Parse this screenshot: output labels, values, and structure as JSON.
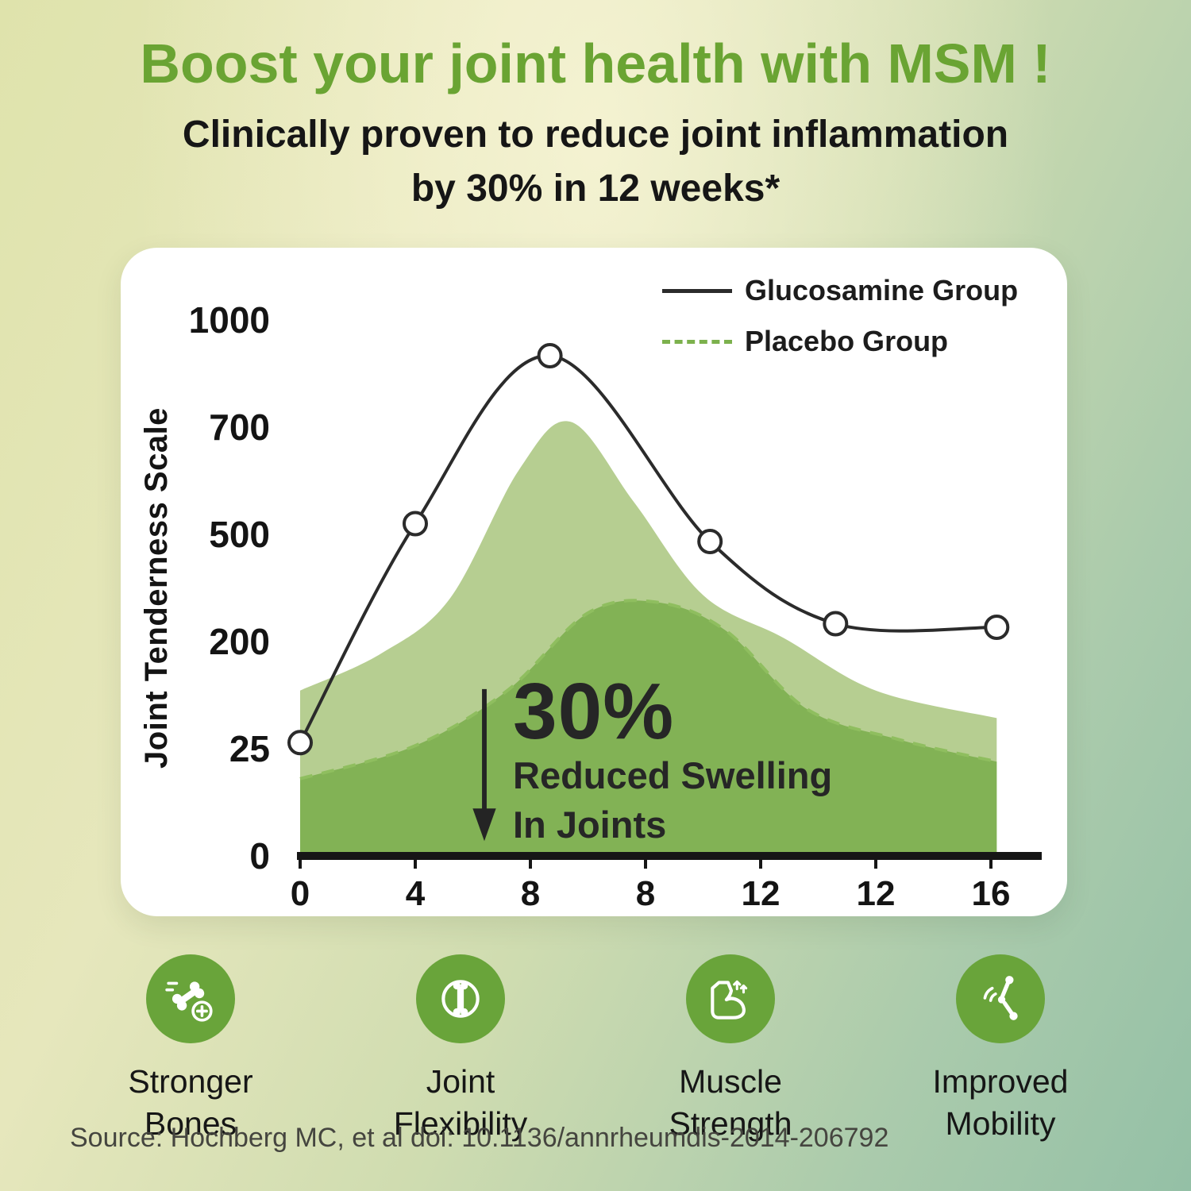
{
  "header": {
    "title": "Boost your joint health with MSM !",
    "subtitle": "Clinically proven to reduce joint inflammation\nby 30% in 12 weeks*"
  },
  "legend": {
    "items": [
      {
        "label": "Glucosamine Group",
        "style": "solid",
        "color": "#2b2b2b"
      },
      {
        "label": "Placebo Group",
        "style": "dashed",
        "color": "#7cb14d"
      }
    ]
  },
  "annotation": {
    "headline": "30%",
    "line1": "Reduced Swelling",
    "line2": "In Joints"
  },
  "features": [
    {
      "icon": "stronger-bones-icon",
      "label": "Stronger\nBones"
    },
    {
      "icon": "joint-flexibility-icon",
      "label": "Joint\nFlexibility"
    },
    {
      "icon": "muscle-strength-icon",
      "label": "Muscle\nStrength"
    },
    {
      "icon": "improved-mobility-icon",
      "label": "Improved\nMobility"
    }
  ],
  "source": "Source: Hochberg MC, et al doi: 10.1136/annrheumdis-2014-206792",
  "colors": {
    "title_green": "#6aa433",
    "badge_green": "#69a43a",
    "area_light": "#b6ce91",
    "area_dark": "#82b255",
    "dashed_green": "#8fbe5f",
    "line_dark": "#2b2b2b"
  },
  "chart_data": {
    "type": "area",
    "title": "",
    "ylabel": "Joint Tenderness Scale",
    "xlabel": "",
    "grid": false,
    "legend_position": "top-right",
    "y_ticks": [
      0,
      25,
      200,
      500,
      700,
      1000
    ],
    "y_tick_labels": [
      "0",
      "25",
      "200",
      "500",
      "700",
      "1000"
    ],
    "x_tick_labels": [
      "0",
      "4",
      "8",
      "8",
      "12",
      "12",
      "16"
    ],
    "series": [
      {
        "name": "Light green area",
        "kind": "area",
        "fill": "#b6ce91",
        "x_pos": [
          0,
          0.7,
          1.3,
          1.9,
          2.35,
          2.9,
          3.5,
          4.2,
          5.0,
          6.05
        ],
        "values": [
          120,
          180,
          320,
          620,
          715,
          560,
          330,
          210,
          120,
          75
        ]
      },
      {
        "name": "Placebo Group",
        "kind": "area-dashed",
        "fill": "#82b255",
        "stroke": "#8fbe5f",
        "x_pos": [
          0,
          1,
          1.8,
          2.5,
          3.1,
          3.7,
          4.4,
          5.2,
          6.05
        ],
        "values": [
          18,
          30,
          120,
          280,
          310,
          230,
          90,
          40,
          22
        ]
      },
      {
        "name": "Glucosamine Group",
        "kind": "line",
        "color": "#2b2b2b",
        "markers": true,
        "x_pos": [
          0,
          1,
          2.17,
          3.56,
          4.65,
          6.05
        ],
        "values": [
          35,
          520,
          900,
          480,
          250,
          240
        ]
      }
    ]
  }
}
